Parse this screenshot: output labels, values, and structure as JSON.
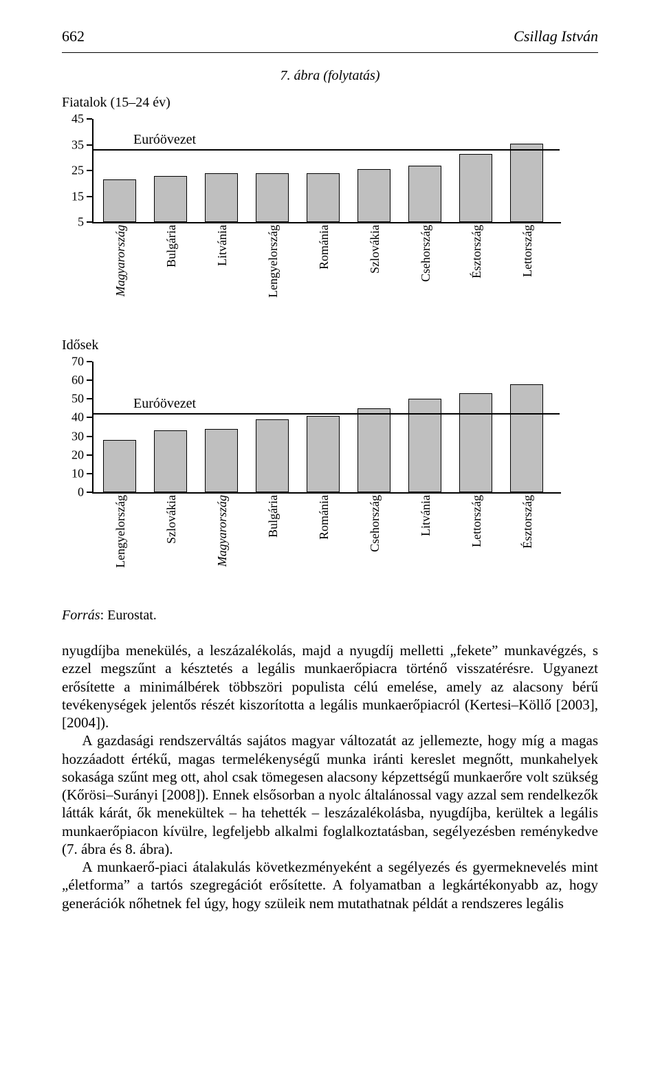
{
  "page_number": "662",
  "running_head_author": "Csillag István",
  "figure_caption": "7. ábra (folytatás)",
  "chart1": {
    "title": "Fiatalok (15–24 év)",
    "type": "bar",
    "ylim": [
      5,
      45
    ],
    "ytick_labels": [
      "5",
      "15",
      "25",
      "35",
      "45"
    ],
    "ytick_values": [
      5,
      15,
      25,
      35,
      45
    ],
    "reference_label": "Euróövezet",
    "reference_value": 33,
    "bar_color": "#bfbfbf",
    "border_color": "#000000",
    "background_color": "#ffffff",
    "label_fontsize": 18,
    "categories": [
      "Magyarország",
      "Bulgária",
      "Litvánia",
      "Lengyelország",
      "Románia",
      "Szlovákia",
      "Csehország",
      "Észtország",
      "Lettország"
    ],
    "values": [
      21.5,
      23,
      24,
      24,
      24,
      25.5,
      27,
      31.5,
      35.5
    ],
    "italic_categories": [
      "Magyarország"
    ]
  },
  "chart2": {
    "title": "Idősek",
    "type": "bar",
    "ylim": [
      0,
      70
    ],
    "ytick_labels": [
      "0",
      "10",
      "20",
      "30",
      "40",
      "50",
      "60",
      "70"
    ],
    "ytick_values": [
      0,
      10,
      20,
      30,
      40,
      50,
      60,
      70
    ],
    "reference_label": "Euróövezet",
    "reference_value": 42,
    "bar_color": "#bfbfbf",
    "border_color": "#000000",
    "background_color": "#ffffff",
    "label_fontsize": 18,
    "categories": [
      "Lengyelország",
      "Szlovákia",
      "Magyarország",
      "Bulgária",
      "Románia",
      "Csehország",
      "Litvánia",
      "Lettország",
      "Észtország"
    ],
    "values": [
      28,
      33,
      34,
      39,
      41,
      45,
      50,
      53,
      58
    ],
    "italic_categories": [
      "Magyarország"
    ]
  },
  "source_label": "Forrás",
  "source_value": "Eurostat.",
  "body_paragraphs": [
    "nyugdíjba menekülés, a leszázalékolás, majd a nyugdíj melletti „fekete” munkavégzés, s ezzel megszűnt a késztetés a legális munkaerőpiacra történő visszatérésre. Ugyanezt erősítette a minimálbérek többszöri populista célú emelése, amely az alacsony bérű tevékenységek jelentős részét kiszorította a legális munkaerőpiacról (Kertesi–Köllő [2003], [2004]).",
    "A gazdasági rendszerváltás sajátos magyar változatát az jellemezte, hogy míg a magas hozzáadott értékű, magas termelékenységű munka iránti kereslet megnőtt, munkahelyek sokasága szűnt meg ott, ahol csak tömegesen alacsony képzettségű munkaerőre volt szükség (Kőrösi–Surányi [2008]). Ennek elsősorban a nyolc általánossal vagy azzal sem rendelkezők látták kárát, ők menekültek – ha tehették – leszázalékolásba, nyugdíjba, kerültek a legális munkaerőpiacon kívülre, legfeljebb alkalmi foglalkoztatásban, segélyezésben reménykedve (7. ábra és 8. ábra).",
    "A munkaerő-piaci átalakulás következményeként a segélyezés és gyermeknevelés mint „életforma” a tartós szegregációt erősítette. A folyamatban a legkártékonyabb az, hogy generációk nőhetnek fel úgy, hogy szüleik nem mutathatnak példát a rendszeres legális"
  ]
}
